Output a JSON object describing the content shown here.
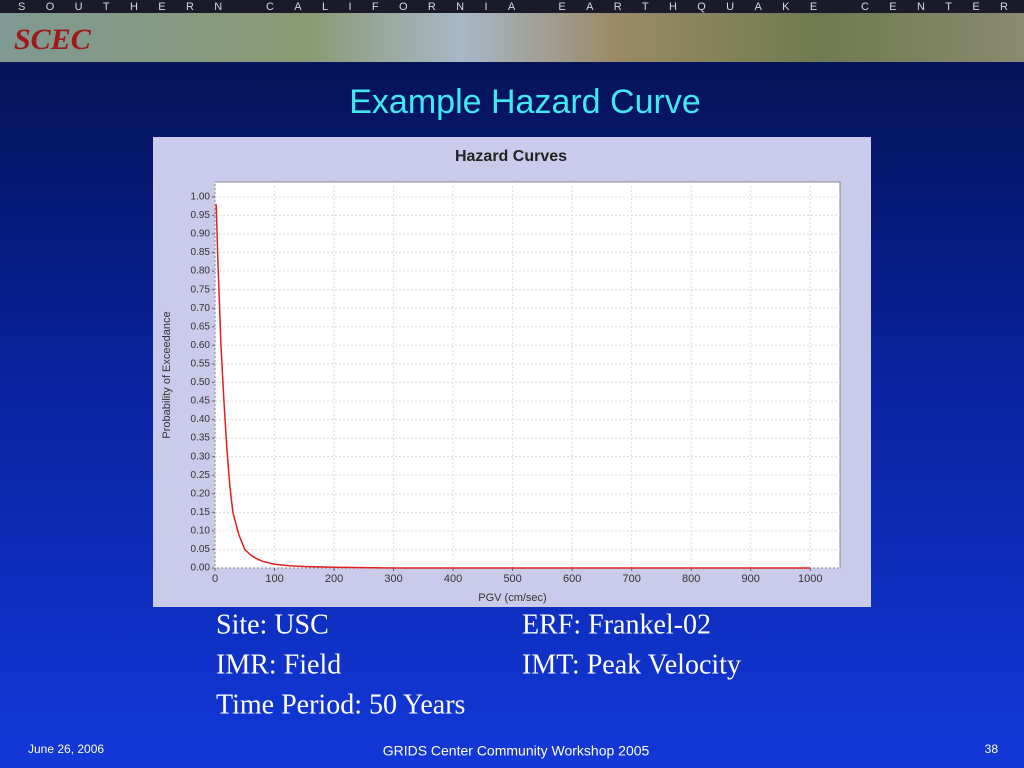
{
  "header": {
    "banner": "SOUTHERN CALIFORNIA EARTHQUAKE CENTER",
    "logo": "SCEC"
  },
  "slide": {
    "title": "Example Hazard Curve",
    "info": [
      [
        "Site: USC",
        "ERF: Frankel-02"
      ],
      [
        "IMR: Field",
        "IMT: Peak Velocity"
      ],
      [
        "Time Period: 50 Years"
      ]
    ]
  },
  "footer": {
    "date": "June 26, 2006",
    "event": "GRIDS Center Community Workshop 2005",
    "page": "38"
  },
  "chart_data": {
    "type": "line",
    "title": "Hazard Curves",
    "x_label": "PGV (cm/sec)",
    "y_label": "Probability of Exceedance",
    "x": [
      2,
      5,
      10,
      15,
      20,
      25,
      30,
      40,
      50,
      60,
      70,
      80,
      100,
      125,
      150,
      200,
      300,
      400,
      500,
      600,
      700,
      800,
      900,
      1000
    ],
    "values": [
      0.98,
      0.82,
      0.6,
      0.45,
      0.32,
      0.22,
      0.15,
      0.09,
      0.05,
      0.035,
      0.025,
      0.018,
      0.01,
      0.006,
      0.004,
      0.002,
      0,
      0,
      0,
      0,
      0,
      0,
      0,
      0
    ],
    "color": "#e02020",
    "xlim": [
      0,
      1050
    ],
    "ylim": [
      0,
      1.04
    ],
    "xticks": [
      0,
      100,
      200,
      300,
      400,
      500,
      600,
      700,
      800,
      900,
      1000
    ],
    "yticks": [
      {
        "value": 0,
        "label": "0.00"
      },
      {
        "value": 0.05,
        "label": "0.05"
      },
      {
        "value": 0.1,
        "label": "0.10"
      },
      {
        "value": 0.15,
        "label": "0.15"
      },
      {
        "value": 0.2,
        "label": "0.20"
      },
      {
        "value": 0.25,
        "label": "0.25"
      },
      {
        "value": 0.3,
        "label": "0.30"
      },
      {
        "value": 0.35,
        "label": "0.35"
      },
      {
        "value": 0.4,
        "label": "0.40"
      },
      {
        "value": 0.45,
        "label": "0.45"
      },
      {
        "value": 0.5,
        "label": "0.50"
      },
      {
        "value": 0.55,
        "label": "0.55"
      },
      {
        "value": 0.6,
        "label": "0.60"
      },
      {
        "value": 0.65,
        "label": "0.65"
      },
      {
        "value": 0.7,
        "label": "0.70"
      },
      {
        "value": 0.75,
        "label": "0.75"
      },
      {
        "value": 0.8,
        "label": "0.80"
      },
      {
        "value": 0.85,
        "label": "0.85"
      },
      {
        "value": 0.9,
        "label": "0.90"
      },
      {
        "value": 0.95,
        "label": "0.95"
      },
      {
        "value": 1,
        "label": "1.00"
      }
    ],
    "grid": true
  }
}
